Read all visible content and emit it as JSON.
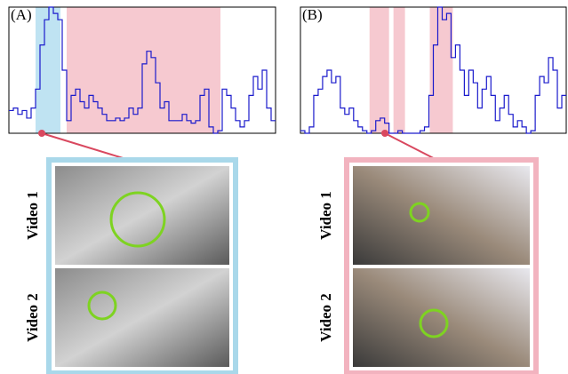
{
  "panels": [
    {
      "label": "(A)",
      "plot": {
        "values": [
          0.18,
          0.2,
          0.15,
          0.18,
          0.12,
          0.2,
          0.35,
          0.7,
          0.9,
          1.0,
          0.95,
          0.9,
          0.5,
          0.1,
          0.3,
          0.35,
          0.25,
          0.2,
          0.3,
          0.25,
          0.2,
          0.15,
          0.1,
          0.1,
          0.12,
          0.1,
          0.12,
          0.2,
          0.15,
          0.2,
          0.55,
          0.65,
          0.6,
          0.4,
          0.2,
          0.25,
          0.1,
          0.1,
          0.1,
          0.15,
          0.1,
          0.08,
          0.1,
          0.3,
          0.35,
          0.05,
          0.0,
          0.02,
          0.35,
          0.3,
          0.2,
          0.1,
          0.05,
          0.1,
          0.3,
          0.45,
          0.35,
          0.5,
          0.2,
          0.1
        ],
        "ylim": [
          0,
          1
        ],
        "xlim": [
          0,
          60
        ],
        "color": "#1a1acc",
        "regions": [
          {
            "range": [
              6,
              11.6
            ],
            "color": "#bfe3f2"
          },
          {
            "range": [
              13,
              47.6
            ],
            "color": "#f6c9d0"
          }
        ]
      },
      "border_color": "#a9d8ea",
      "videos": [
        "Video 1",
        "Video 2"
      ]
    },
    {
      "label": "(B)",
      "plot": {
        "values": [
          0.02,
          0.0,
          0.05,
          0.3,
          0.35,
          0.45,
          0.5,
          0.4,
          0.45,
          0.2,
          0.15,
          0.2,
          0.1,
          0.05,
          0.02,
          0.0,
          0.02,
          0.1,
          0.12,
          0.08,
          0.0,
          0.0,
          0.02,
          0.0,
          0.0,
          0.0,
          0.0,
          0.02,
          0.05,
          0.3,
          0.7,
          1.0,
          0.9,
          0.95,
          0.6,
          0.7,
          0.5,
          0.3,
          0.5,
          0.4,
          0.2,
          0.35,
          0.45,
          0.3,
          0.1,
          0.2,
          0.3,
          0.15,
          0.05,
          0.1,
          0.05,
          0.0,
          0.02,
          0.3,
          0.45,
          0.4,
          0.6,
          0.5,
          0.2,
          0.3
        ],
        "ylim": [
          0,
          1
        ],
        "xlim": [
          0,
          60
        ],
        "color": "#1a1acc",
        "regions": [
          {
            "range": [
              15.6,
              20
            ],
            "color": "#f6c9d0"
          },
          {
            "range": [
              21,
              23.6
            ],
            "color": "#f6c9d0"
          },
          {
            "range": [
              29.2,
              34.4
            ],
            "color": "#f6c9d0"
          }
        ]
      },
      "border_color": "#f2b3bf",
      "videos": [
        "Video 1",
        "Video 2"
      ]
    }
  ]
}
